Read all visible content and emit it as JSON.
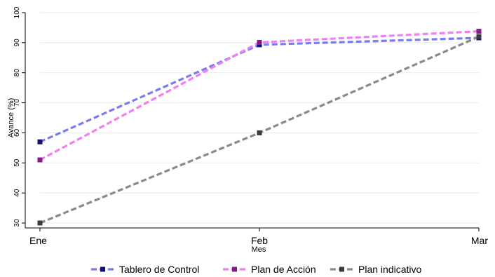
{
  "chart_data": {
    "type": "line",
    "categories": [
      "Ene",
      "Feb",
      "Mar"
    ],
    "xlabel": "Mes",
    "ylabel": "Avance (%)",
    "ylim": [
      30,
      100
    ],
    "yticks": [
      30,
      40,
      50,
      60,
      70,
      80,
      90,
      100
    ],
    "grid": true,
    "legend_position": "bottom",
    "series": [
      {
        "name": "Tablero de Control",
        "values": [
          57,
          89.3,
          91.6
        ],
        "line_color": "#7b7bf0",
        "marker_color": "#10107a"
      },
      {
        "name": "Plan de Acción",
        "values": [
          51,
          90.1,
          93.8
        ],
        "line_color": "#f07ff0",
        "marker_color": "#8a1a8a"
      },
      {
        "name": "Plan indicativo",
        "values": [
          30,
          60,
          92
        ],
        "line_color": "#8a8a8a",
        "marker_color": "#3a3a3a"
      }
    ]
  }
}
